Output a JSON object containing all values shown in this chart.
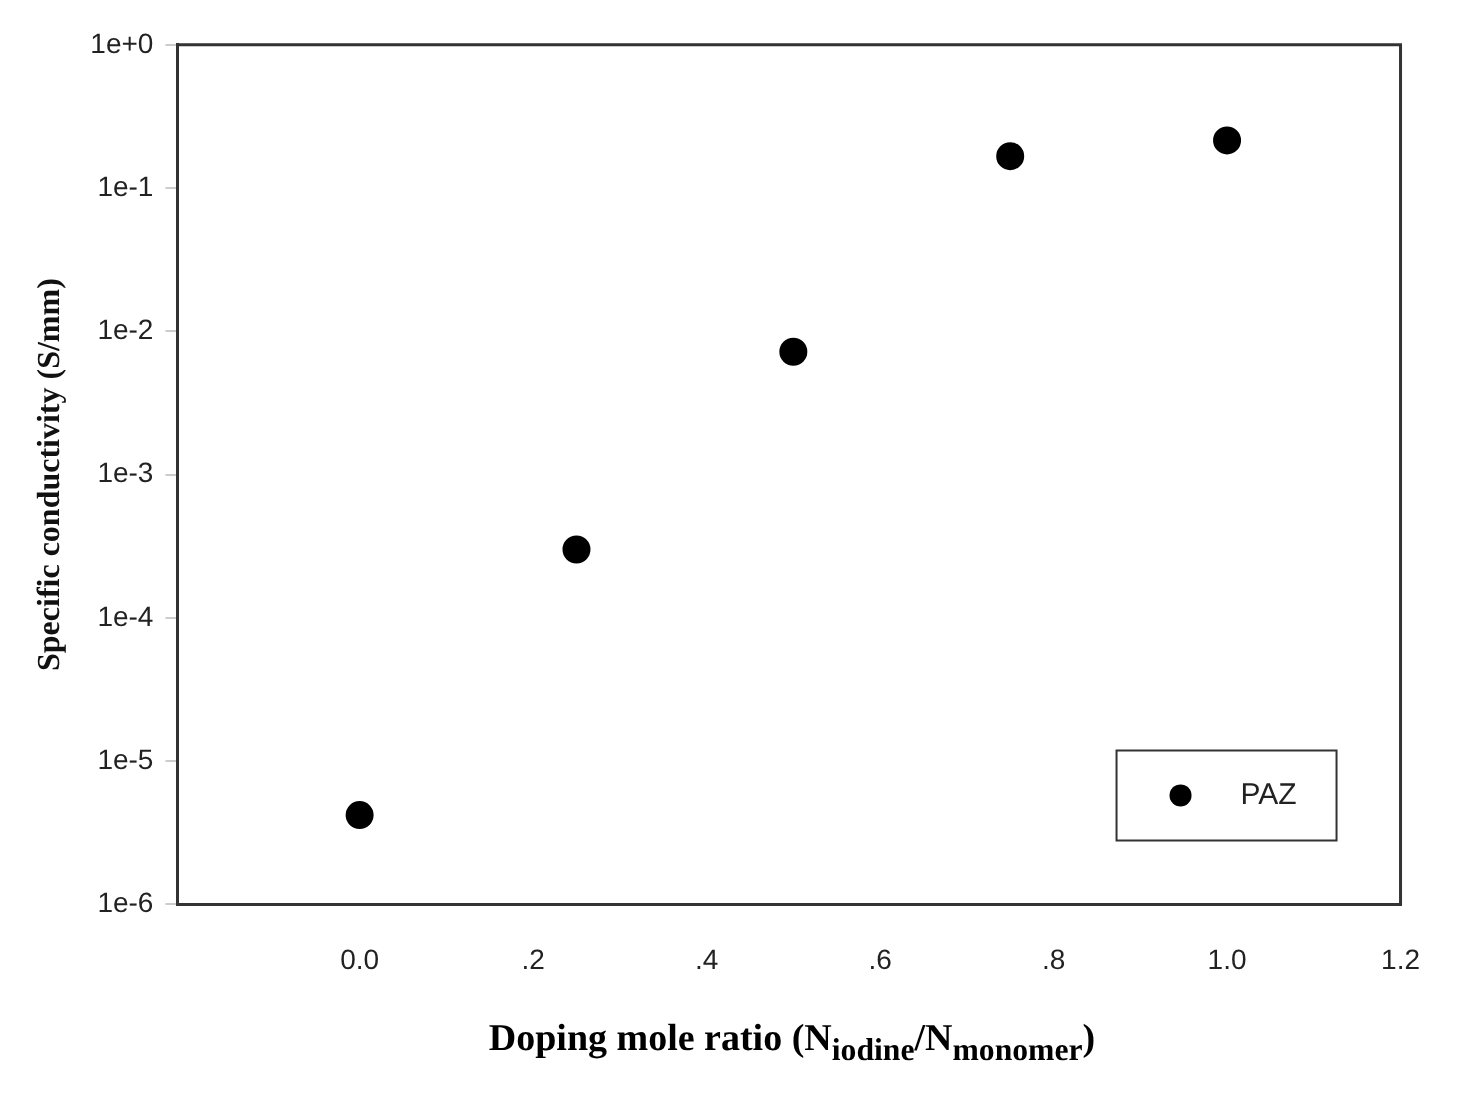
{
  "chart_data": {
    "type": "scatter",
    "xlabel": "Doping mole ratio (N$_{iodine}$/N$_{monomer}$)",
    "ylabel": "Specific conductivity (S/mm)",
    "x": [
      0.0,
      0.25,
      0.5,
      0.75,
      1.0
    ],
    "series": [
      {
        "name": "PAZ",
        "color": "#000000",
        "values": [
          4.2e-06,
          0.0003,
          0.0072,
          0.167,
          0.215
        ]
      }
    ],
    "log": "y",
    "xlim": [
      -0.21,
      1.2
    ],
    "ylim": [
      1e-06,
      1
    ],
    "xticks": [
      {
        "value": 0,
        "label": "0.0"
      },
      {
        "value": 0.2,
        "label": ".2"
      },
      {
        "value": 0.4,
        "label": ".4"
      },
      {
        "value": 0.6,
        "label": ".6"
      },
      {
        "value": 0.8,
        "label": ".8"
      },
      {
        "value": 1,
        "label": "1.0"
      },
      {
        "value": 1.2,
        "label": "1.2"
      }
    ],
    "yticks": [
      {
        "value": 1e-06,
        "label": "1e-6"
      },
      {
        "value": 1e-05,
        "label": "1e-5"
      },
      {
        "value": 0.0001,
        "label": "1e-4"
      },
      {
        "value": 0.001,
        "label": "1e-3"
      },
      {
        "value": 0.01,
        "label": "1e-2"
      },
      {
        "value": 0.1,
        "label": "1e-1"
      },
      {
        "value": 1,
        "label": "1e+0"
      }
    ],
    "grid": false,
    "legend": "bottom right",
    "marker": "circle"
  }
}
